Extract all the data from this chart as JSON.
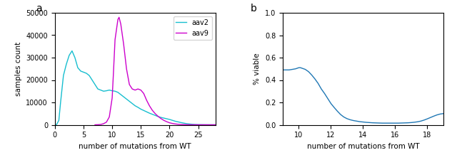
{
  "panel_a": {
    "label": "a",
    "xlabel": "number of mutations from WT",
    "ylabel": "samples count",
    "xlim": [
      0,
      28
    ],
    "ylim": [
      0,
      50000
    ],
    "yticks": [
      0,
      10000,
      20000,
      30000,
      40000,
      50000
    ],
    "xticks": [
      0,
      5,
      10,
      15,
      20,
      25
    ],
    "aav2_color": "#17becf",
    "aav9_color": "#cc00cc",
    "aav2_x": [
      0,
      0.3,
      0.7,
      1,
      1.5,
      2,
      2.5,
      3,
      3.5,
      4,
      4.5,
      5,
      5.5,
      6,
      6.5,
      7,
      7.5,
      8,
      8.5,
      9,
      9.5,
      10,
      10.5,
      11,
      11.5,
      12,
      12.5,
      13,
      13.5,
      14,
      14.5,
      15,
      15.5,
      16,
      16.5,
      17,
      17.5,
      18,
      18.5,
      19,
      19.5,
      20,
      20.5,
      21,
      21.5,
      22,
      22.5,
      23,
      23.5,
      24,
      24.5,
      25,
      25.5,
      26,
      26.5,
      27,
      27.5,
      28
    ],
    "aav2_y": [
      0,
      100,
      2000,
      10000,
      22000,
      27000,
      31000,
      33000,
      30000,
      25500,
      24000,
      23500,
      23000,
      22000,
      20000,
      18000,
      16000,
      15500,
      15000,
      15200,
      15500,
      15200,
      15000,
      14500,
      13500,
      12500,
      11500,
      10500,
      9500,
      8500,
      7800,
      7000,
      6400,
      5800,
      5200,
      4700,
      4200,
      3700,
      3300,
      3000,
      2700,
      2400,
      2000,
      1600,
      1300,
      1000,
      750,
      500,
      350,
      220,
      130,
      80,
      50,
      30,
      15,
      8,
      3,
      0
    ],
    "aav9_x": [
      7,
      7.5,
      8,
      8.5,
      9,
      9.5,
      10,
      10.2,
      10.5,
      11,
      11.2,
      11.5,
      12,
      12.5,
      13,
      13.5,
      14,
      14.5,
      15,
      15.5,
      16,
      16.5,
      17,
      17.5,
      18,
      18.5,
      19,
      19.5,
      20,
      20.5,
      21,
      21.5,
      22,
      22.5,
      23,
      23.5,
      24,
      24.5,
      25,
      25.5,
      26,
      26.5,
      27,
      27.5,
      28
    ],
    "aav9_y": [
      0,
      50,
      150,
      500,
      1200,
      3500,
      12000,
      22000,
      38000,
      47000,
      48000,
      45000,
      36000,
      25000,
      18000,
      16000,
      15500,
      16000,
      15500,
      14000,
      11000,
      8500,
      6500,
      5000,
      3800,
      2800,
      2000,
      1400,
      900,
      600,
      380,
      230,
      140,
      85,
      50,
      30,
      18,
      10,
      5,
      3,
      2,
      1,
      0,
      0,
      0
    ],
    "legend_labels": [
      "aav2",
      "aav9"
    ]
  },
  "panel_b": {
    "label": "b",
    "xlabel": "number of mutations from WT",
    "ylabel": "% viable",
    "xlim": [
      9,
      19
    ],
    "ylim": [
      0.0,
      1.0
    ],
    "yticks": [
      0.0,
      0.2,
      0.4,
      0.6,
      0.8,
      1.0
    ],
    "xticks": [
      10,
      12,
      14,
      16,
      18
    ],
    "line_color": "#1f77b4",
    "x": [
      9.0,
      9.2,
      9.4,
      9.6,
      9.8,
      10.0,
      10.1,
      10.2,
      10.4,
      10.6,
      10.8,
      11.0,
      11.2,
      11.4,
      11.6,
      11.8,
      12.0,
      12.2,
      12.4,
      12.6,
      12.8,
      13.0,
      13.2,
      13.4,
      13.6,
      13.8,
      14.0,
      14.2,
      14.4,
      14.6,
      14.8,
      15.0,
      15.2,
      15.4,
      15.6,
      15.8,
      16.0,
      16.2,
      16.4,
      16.6,
      16.8,
      17.0,
      17.2,
      17.4,
      17.6,
      17.8,
      18.0,
      18.2,
      18.4,
      18.6,
      18.8,
      19.0
    ],
    "y": [
      0.49,
      0.49,
      0.49,
      0.495,
      0.5,
      0.51,
      0.51,
      0.505,
      0.495,
      0.475,
      0.445,
      0.41,
      0.37,
      0.32,
      0.28,
      0.235,
      0.19,
      0.155,
      0.122,
      0.092,
      0.07,
      0.055,
      0.045,
      0.038,
      0.033,
      0.028,
      0.025,
      0.022,
      0.02,
      0.018,
      0.017,
      0.016,
      0.015,
      0.015,
      0.015,
      0.015,
      0.015,
      0.015,
      0.016,
      0.017,
      0.018,
      0.02,
      0.023,
      0.027,
      0.033,
      0.042,
      0.053,
      0.065,
      0.077,
      0.088,
      0.096,
      0.1
    ]
  }
}
